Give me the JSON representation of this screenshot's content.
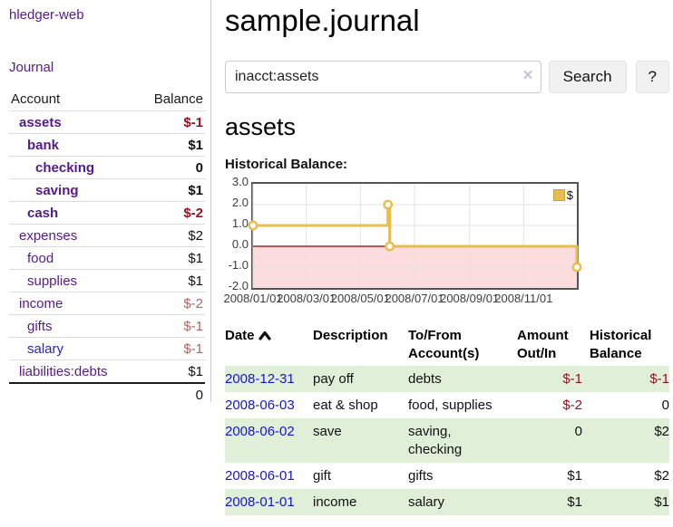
{
  "colors": {
    "link_purple": "#551A8B",
    "link_blue": "#2222DD",
    "negative_strong": "#941122",
    "negative_muted": "#B36363",
    "row_stripe_green": "#DFEFD8",
    "chart_line": "#E8BC4E",
    "chart_negative_fill": "#FCDCDC",
    "chart_zero_line": "#8B0000"
  },
  "sidebar": {
    "app_title": "hledger-web",
    "journal_link": "Journal",
    "table": {
      "account_header": "Account",
      "balance_header": "Balance",
      "rows": [
        {
          "account": "assets",
          "balance": "$-1",
          "indent": 1,
          "matched": true,
          "balance_tone": "neg-strong"
        },
        {
          "account": "bank",
          "balance": "$1",
          "indent": 2,
          "matched": true,
          "balance_tone": null
        },
        {
          "account": "checking",
          "balance": "0",
          "indent": 3,
          "matched": true,
          "balance_tone": null
        },
        {
          "account": "saving",
          "balance": "$1",
          "indent": 3,
          "matched": true,
          "balance_tone": null
        },
        {
          "account": "cash",
          "balance": "$-2",
          "indent": 2,
          "matched": true,
          "balance_tone": "neg-strong"
        },
        {
          "account": "expenses",
          "balance": "$2",
          "indent": 1,
          "matched": false,
          "balance_tone": null
        },
        {
          "account": "food",
          "balance": "$1",
          "indent": 2,
          "matched": false,
          "balance_tone": null
        },
        {
          "account": "supplies",
          "balance": "$1",
          "indent": 2,
          "matched": false,
          "balance_tone": null
        },
        {
          "account": "income",
          "balance": "$-2",
          "indent": 1,
          "matched": false,
          "balance_tone": "neg-muted"
        },
        {
          "account": "gifts",
          "balance": "$-1",
          "indent": 2,
          "matched": false,
          "balance_tone": "neg-muted"
        },
        {
          "account": "salary",
          "balance": "$-1",
          "indent": 2,
          "matched": false,
          "balance_tone": "neg-muted",
          "link_tone": "blue"
        },
        {
          "account": "liabilities:debts",
          "balance": "$1",
          "indent": 1,
          "matched": false,
          "balance_tone": null
        }
      ],
      "total": "0"
    }
  },
  "main": {
    "title": "sample.journal",
    "search": {
      "value": "inacct:assets",
      "clear_icon": "×",
      "search_button": "Search",
      "help_button": "?"
    },
    "account_heading": "assets",
    "chart_label": "Historical Balance:"
  },
  "chart_data": {
    "type": "line",
    "step": true,
    "title": "Historical Balance",
    "series": [
      {
        "name": "$",
        "color": "#E8BC4E",
        "points": [
          [
            "2008-01-01",
            1
          ],
          [
            "2008-06-01",
            2
          ],
          [
            "2008-06-03",
            0
          ],
          [
            "2008-12-31",
            -1
          ]
        ]
      }
    ],
    "x_range": [
      "2008-01-01",
      "2008-12-31"
    ],
    "x_ticks": [
      "2008/01/01",
      "2008/03/01",
      "2008/05/01",
      "2008/07/01",
      "2008/09/01",
      "2008/11/01"
    ],
    "y_ticks": [
      3.0,
      2.0,
      1.0,
      0.0,
      -1.0,
      -2.0
    ],
    "ylim": [
      -2,
      3
    ],
    "grid": true,
    "legend_position": "top-right",
    "negative_region_color": "#FCDCDC",
    "zero_line_color": "#8B0000"
  },
  "register": {
    "headers": {
      "date": "Date",
      "description": "Description",
      "accounts": "To/From Account(s)",
      "amount": "Amount Out/In",
      "balance": "Historical Balance"
    },
    "sort": {
      "column": "date",
      "direction": "ascending"
    },
    "rows": [
      {
        "date": "2008-12-31",
        "description": "pay off",
        "accounts": "debts",
        "amount": "$-1",
        "balance": "$-1",
        "amount_tone": "neg-strong",
        "balance_tone": "neg-strong",
        "shaded": true
      },
      {
        "date": "2008-06-03",
        "description": "eat & shop",
        "accounts": "food, supplies",
        "amount": "$-2",
        "balance": "0",
        "amount_tone": "neg-strong",
        "balance_tone": null,
        "shaded": false
      },
      {
        "date": "2008-06-02",
        "description": "save",
        "accounts": "saving, checking",
        "amount": "0",
        "balance": "$2",
        "amount_tone": null,
        "balance_tone": null,
        "shaded": true
      },
      {
        "date": "2008-06-01",
        "description": "gift",
        "accounts": "gifts",
        "amount": "$1",
        "balance": "$2",
        "amount_tone": null,
        "balance_tone": null,
        "shaded": false
      },
      {
        "date": "2008-01-01",
        "description": "income",
        "accounts": "salary",
        "amount": "$1",
        "balance": "$1",
        "amount_tone": null,
        "balance_tone": null,
        "shaded": true
      }
    ]
  }
}
